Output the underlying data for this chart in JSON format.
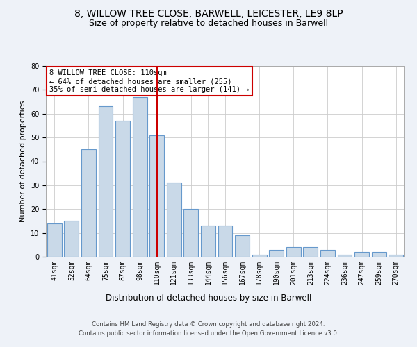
{
  "title1": "8, WILLOW TREE CLOSE, BARWELL, LEICESTER, LE9 8LP",
  "title2": "Size of property relative to detached houses in Barwell",
  "xlabel": "Distribution of detached houses by size in Barwell",
  "ylabel": "Number of detached properties",
  "categories": [
    "41sqm",
    "52sqm",
    "64sqm",
    "75sqm",
    "87sqm",
    "98sqm",
    "110sqm",
    "121sqm",
    "133sqm",
    "144sqm",
    "156sqm",
    "167sqm",
    "178sqm",
    "190sqm",
    "201sqm",
    "213sqm",
    "224sqm",
    "236sqm",
    "247sqm",
    "259sqm",
    "270sqm"
  ],
  "values": [
    14,
    15,
    45,
    63,
    57,
    67,
    51,
    31,
    20,
    13,
    13,
    9,
    1,
    3,
    4,
    4,
    3,
    1,
    2,
    2,
    1
  ],
  "bar_color": "#c9d9e8",
  "bar_edge_color": "#6699cc",
  "highlight_index": 6,
  "highlight_line_color": "#cc0000",
  "annotation_line1": "8 WILLOW TREE CLOSE: 110sqm",
  "annotation_line2": "← 64% of detached houses are smaller (255)",
  "annotation_line3": "35% of semi-detached houses are larger (141) →",
  "annotation_box_color": "#ffffff",
  "annotation_box_edge_color": "#cc0000",
  "ylim": [
    0,
    80
  ],
  "yticks": [
    0,
    10,
    20,
    30,
    40,
    50,
    60,
    70,
    80
  ],
  "bg_color": "#eef2f8",
  "plot_bg_color": "#ffffff",
  "footer_line1": "Contains HM Land Registry data © Crown copyright and database right 2024.",
  "footer_line2": "Contains public sector information licensed under the Open Government Licence v3.0.",
  "title1_fontsize": 10,
  "title2_fontsize": 9,
  "xlabel_fontsize": 8.5,
  "ylabel_fontsize": 8,
  "tick_fontsize": 7,
  "annotation_fontsize": 7.5
}
